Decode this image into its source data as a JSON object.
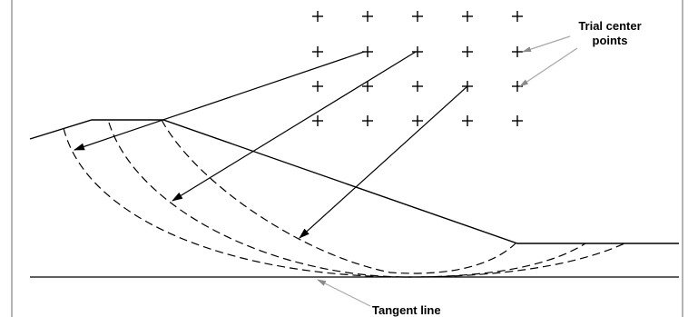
{
  "labels": {
    "trial_center_line1": "Trial center",
    "trial_center_line2": "points",
    "tangent_line": "Tangent line"
  },
  "colors": {
    "ink": "#000000",
    "leader": "#a8a8a8",
    "frame": "#6a6a6a",
    "background": "#ffffff"
  },
  "icons": {
    "trial_center_marker": "plus-marker",
    "arrowhead": "filled-triangle-arrowhead"
  }
}
